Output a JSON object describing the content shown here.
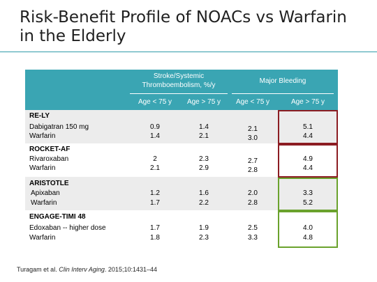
{
  "title": {
    "line1": "Risk-Benefit Profile of NOACs vs Warfarin",
    "line2": "in the Elderly"
  },
  "table": {
    "header": {
      "stroke_line1": "Stroke/Systemic",
      "stroke_line2": "Thromboembolism, %/y",
      "bleeding": "Major Bleeding",
      "sub": [
        "Age < 75 y",
        "Age > 75 y",
        "Age < 75 y",
        "Age > 75 y"
      ]
    },
    "trials": [
      {
        "name": "RE-LY",
        "rows": [
          {
            "label": "Dabigatran 150 mg",
            "values": [
              "0.9",
              "1.4",
              "2.1",
              "5.1"
            ]
          },
          {
            "label": "Warfarin",
            "values": [
              "1.4",
              "2.1",
              "3.0",
              "4.4"
            ]
          }
        ]
      },
      {
        "name": "ROCKET-AF",
        "rows": [
          {
            "label": "Rivaroxaban",
            "values": [
              "2",
              "2.3",
              "2.7",
              "4.9"
            ]
          },
          {
            "label": "Warfarin",
            "values": [
              "2.1",
              "2.9",
              "2.8",
              "4.4"
            ]
          }
        ]
      },
      {
        "name": "ARISTOTLE",
        "rows": [
          {
            "label": "Apixaban",
            "values": [
              "1.2",
              "1.6",
              "2.0",
              "3.3"
            ]
          },
          {
            "label": "Warfarin",
            "values": [
              "1.7",
              "2.2",
              "2.8",
              "5.2"
            ]
          }
        ]
      },
      {
        "name": "ENGAGE-TIMI  48",
        "rows": [
          {
            "label": "Edoxaban -- higher dose",
            "values": [
              "1.7",
              "1.9",
              "2.5",
              "4.0"
            ]
          },
          {
            "label": "Warfarin",
            "values": [
              "1.8",
              "2.3",
              "3.3",
              "4.8"
            ]
          }
        ]
      }
    ],
    "highlight_colors": {
      "worse": "#8c1c22",
      "better": "#6aa22c"
    }
  },
  "citation": {
    "authors": "Turagam et al.",
    "journal": "Clin Interv Aging",
    "details": ". 2015;10:1431–44"
  }
}
